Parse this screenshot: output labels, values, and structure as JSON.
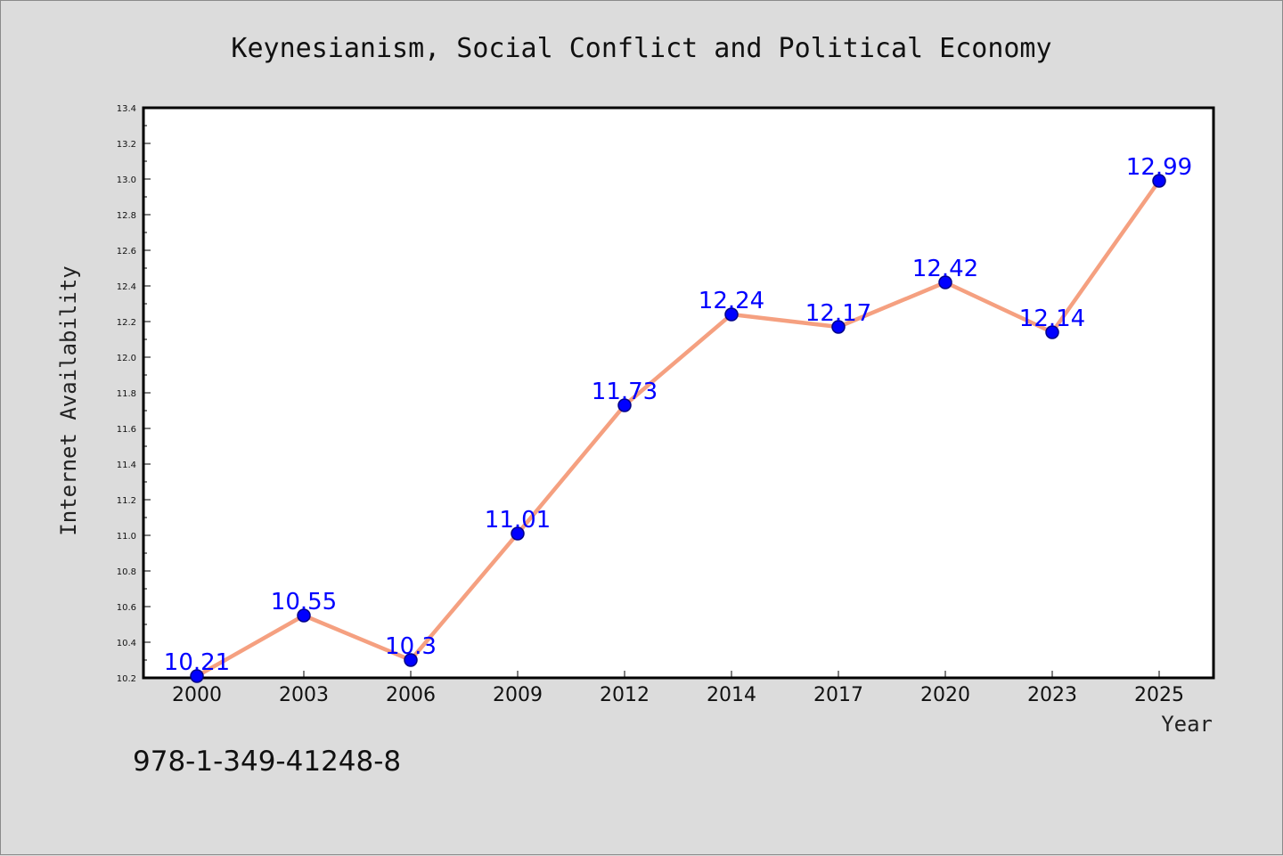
{
  "chart_data": {
    "type": "line",
    "title": "Keynesianism, Social Conflict and Political Economy",
    "xlabel": "Year",
    "ylabel": "Internet Availability",
    "categories": [
      "2000",
      "2003",
      "2006",
      "2009",
      "2012",
      "2014",
      "2017",
      "2020",
      "2023",
      "2025"
    ],
    "series": [
      {
        "values": [
          10.21,
          10.55,
          10.3,
          11.01,
          11.73,
          12.24,
          12.17,
          12.42,
          12.14,
          12.99
        ],
        "data_labels": [
          "10.21",
          "10.55",
          "10.3",
          "11.01",
          "11.73",
          "12.24",
          "12.17",
          "12.42",
          "12.14",
          "12.99"
        ]
      }
    ],
    "ylim": [
      10.2,
      13.4
    ],
    "yticks": [
      "10.2",
      "10.4",
      "10.6",
      "10.8",
      "11.0",
      "11.2",
      "11.4",
      "11.6",
      "11.8",
      "12.0",
      "12.2",
      "12.4",
      "12.6",
      "12.8",
      "13.0",
      "13.2",
      "13.4"
    ],
    "grid": false,
    "colors": {
      "line": "#f5a080",
      "marker": "#0000ff",
      "marker_edge": "#000088",
      "data_label": "#0000ff",
      "plot_background": "#ffffff",
      "figure_background": "#dcdcdc"
    }
  },
  "footer": {
    "isbn": "978-1-349-41248-8"
  }
}
